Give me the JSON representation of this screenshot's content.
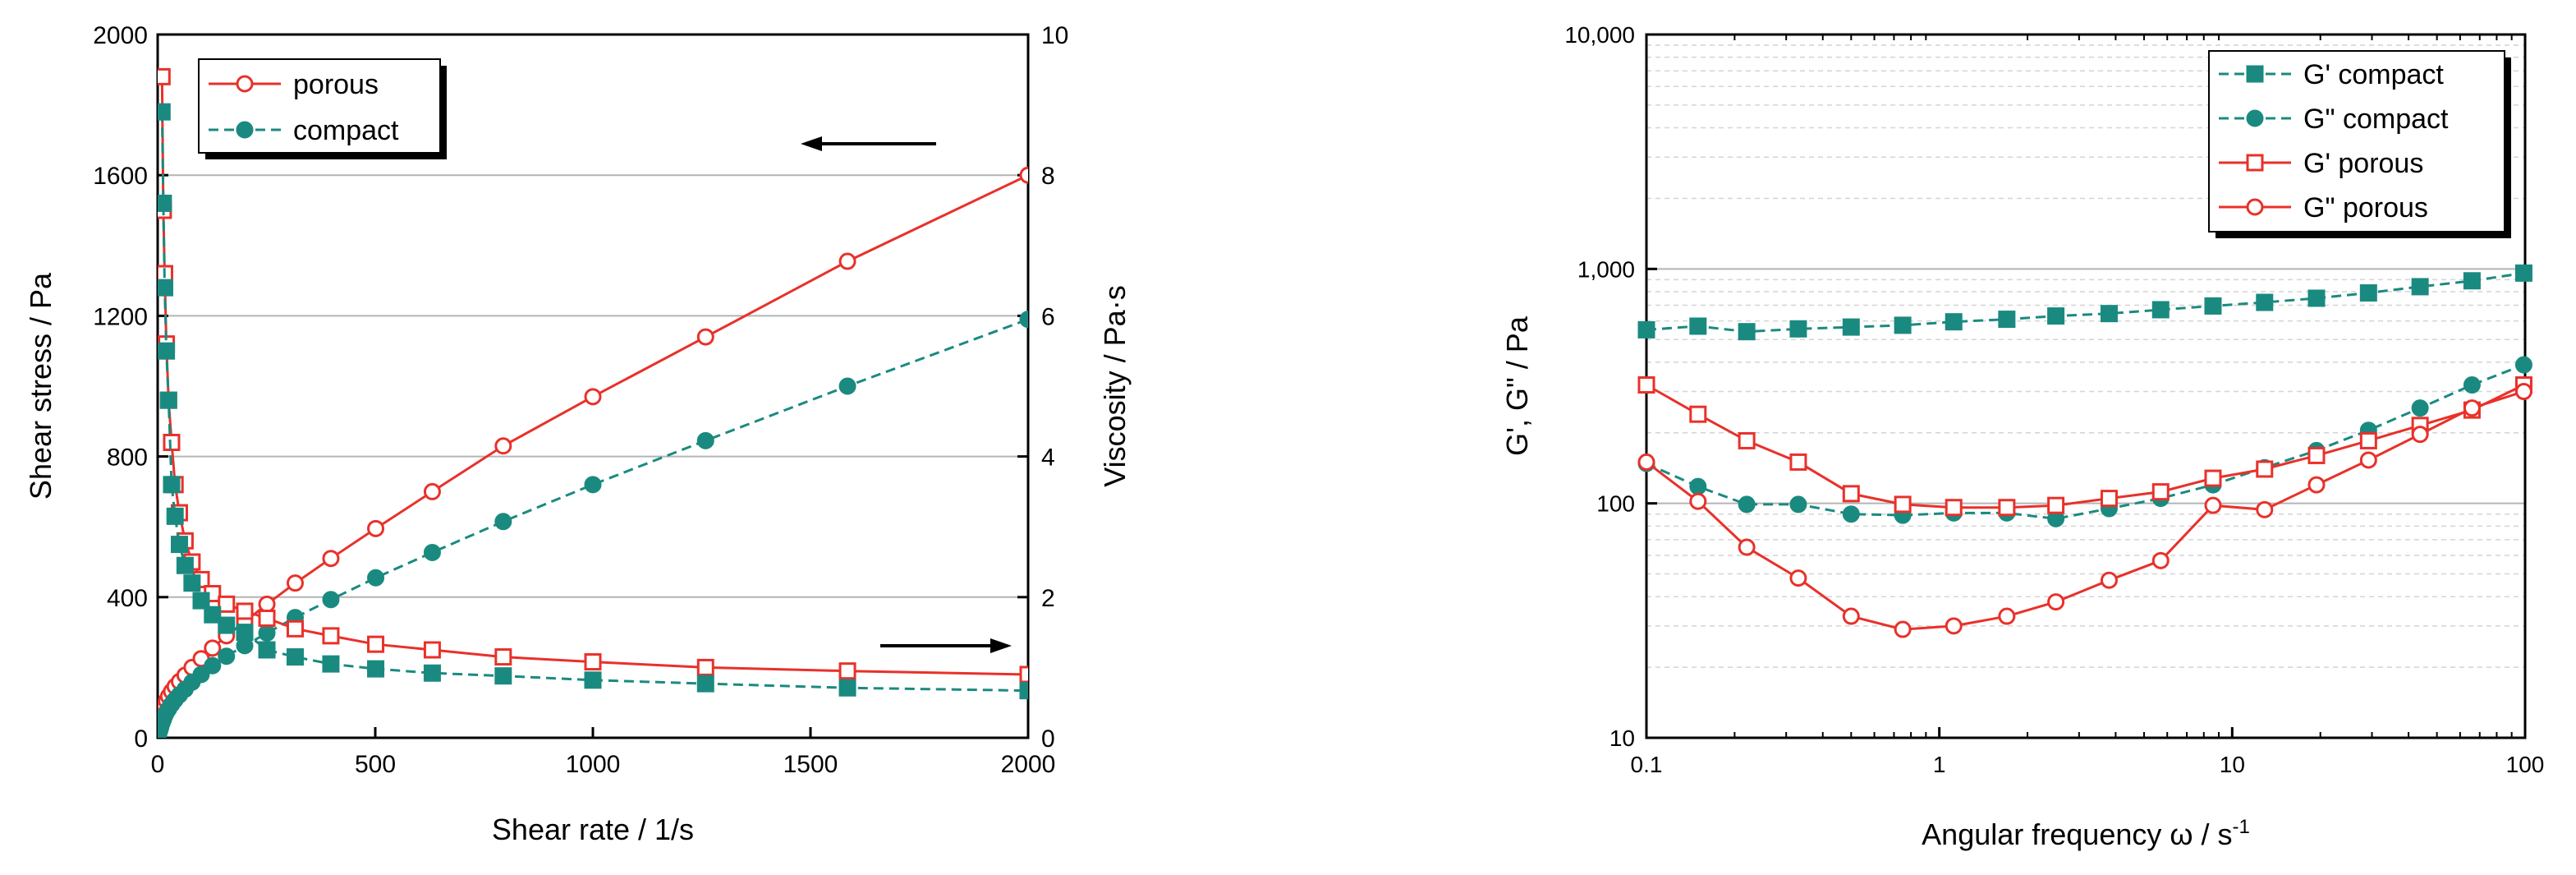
{
  "chart_data": [
    {
      "type": "scatter",
      "id": "flow-curve",
      "xlabel": "Shear rate  /  1/s",
      "ylabel": "Shear stress  /  Pa",
      "y2label": "Viscosity  /  Pa·s",
      "xlim": [
        0,
        2000
      ],
      "ylim": [
        0,
        2000
      ],
      "y2lim": [
        0,
        10
      ],
      "xticks": [
        0,
        500,
        1000,
        1500,
        2000
      ],
      "xtick_labels": [
        "0",
        "500",
        "1000",
        "1500",
        "2000"
      ],
      "yticks": [
        0,
        400,
        800,
        1200,
        1600,
        2000
      ],
      "ytick_labels": [
        "0",
        "400",
        "800",
        "1200",
        "1600",
        "2000"
      ],
      "y2ticks": [
        0,
        2,
        4,
        6,
        8,
        10
      ],
      "y2tick_labels": [
        "0",
        "2",
        "4",
        "6",
        "8",
        "10"
      ],
      "grid": "horizontal",
      "legend_position": "top-left",
      "legend": [
        "porous",
        "compact"
      ],
      "annotations": [
        "arrow pointing left to Shear stress axis",
        "arrow pointing right to Viscosity axis"
      ],
      "series": [
        {
          "name": "porous",
          "quantity": "shear stress",
          "axis": "left",
          "color": "#e8312a",
          "marker": "open-circle",
          "linestyle": "solid",
          "x": [
            1,
            2,
            3,
            5,
            7,
            10,
            13,
            16,
            20,
            25,
            32,
            40,
            50,
            63,
            79,
            100,
            126,
            158,
            200,
            251,
            316,
            398,
            501,
            631,
            794,
            1000,
            1259,
            1585,
            2000
          ],
          "y": [
            8,
            15,
            22,
            32,
            42,
            60,
            75,
            90,
            105,
            118,
            132,
            146,
            160,
            178,
            200,
            225,
            255,
            290,
            330,
            380,
            440,
            510,
            595,
            700,
            830,
            970,
            1140,
            1355,
            1600
          ]
        },
        {
          "name": "compact",
          "quantity": "shear stress",
          "axis": "left",
          "color": "#1a8a80",
          "marker": "filled-circle",
          "linestyle": "dashed",
          "x": [
            1,
            2,
            3,
            5,
            7,
            10,
            13,
            16,
            20,
            25,
            32,
            40,
            50,
            63,
            79,
            100,
            126,
            158,
            200,
            251,
            316,
            398,
            501,
            631,
            794,
            1000,
            1259,
            1585,
            2000
          ],
          "y": [
            5,
            10,
            15,
            22,
            30,
            42,
            52,
            62,
            72,
            82,
            95,
            108,
            122,
            138,
            158,
            180,
            205,
            232,
            262,
            298,
            342,
            393,
            455,
            527,
            615,
            720,
            845,
            1000,
            1190
          ]
        },
        {
          "name": "porous",
          "quantity": "viscosity",
          "axis": "right",
          "color": "#e8312a",
          "marker": "open-square",
          "linestyle": "solid",
          "x": [
            10,
            13,
            16,
            20,
            25,
            32,
            40,
            50,
            63,
            79,
            100,
            126,
            158,
            200,
            251,
            316,
            398,
            501,
            631,
            794,
            1000,
            1259,
            1585,
            2000
          ],
          "y": [
            9.4,
            7.5,
            6.6,
            5.6,
            4.8,
            4.2,
            3.6,
            3.2,
            2.8,
            2.5,
            2.25,
            2.05,
            1.9,
            1.8,
            1.7,
            1.55,
            1.45,
            1.33,
            1.25,
            1.15,
            1.08,
            1.0,
            0.95,
            0.9
          ]
        },
        {
          "name": "compact",
          "quantity": "viscosity",
          "axis": "right",
          "color": "#1a8a80",
          "marker": "filled-square",
          "linestyle": "dashed",
          "x": [
            10,
            13,
            16,
            20,
            25,
            32,
            40,
            50,
            63,
            79,
            100,
            126,
            158,
            200,
            251,
            316,
            398,
            501,
            631,
            794,
            1000,
            1259,
            1585,
            2000
          ],
          "y": [
            8.9,
            7.6,
            6.4,
            5.5,
            4.8,
            3.6,
            3.15,
            2.75,
            2.45,
            2.2,
            1.95,
            1.75,
            1.6,
            1.5,
            1.25,
            1.15,
            1.05,
            0.98,
            0.92,
            0.88,
            0.82,
            0.77,
            0.71,
            0.67
          ]
        }
      ]
    },
    {
      "type": "line",
      "id": "frequency-sweep",
      "xlabel": "Angular frequency ω / s",
      "xlabel_superscript": "-1",
      "ylabel": "G', G\"  /  Pa",
      "xscale": "log",
      "yscale": "log",
      "xlim": [
        0.1,
        100
      ],
      "ylim": [
        10,
        10000
      ],
      "xticks": [
        0.1,
        1,
        10,
        100
      ],
      "xtick_labels": [
        "0.1",
        "1",
        "10",
        "100"
      ],
      "yticks": [
        10,
        100,
        1000,
        10000
      ],
      "ytick_labels": [
        "10",
        "100",
        "1,000",
        "10,000"
      ],
      "grid": "horizontal major and minor",
      "legend_position": "top-right",
      "legend": [
        "G' compact",
        "G\" compact",
        "G' porous",
        "G\" porous"
      ],
      "series": [
        {
          "name": "G' compact",
          "color": "#1a8a80",
          "marker": "filled-square",
          "linestyle": "dashed",
          "x": [
            0.1,
            0.15,
            0.22,
            0.33,
            0.5,
            0.75,
            1.12,
            1.7,
            2.5,
            3.8,
            5.7,
            8.6,
            12.9,
            19.4,
            29.2,
            43.8,
            65.9,
            99
          ],
          "y": [
            550,
            570,
            540,
            555,
            565,
            575,
            595,
            610,
            630,
            645,
            670,
            695,
            720,
            750,
            790,
            840,
            890,
            960
          ]
        },
        {
          "name": "G\" compact",
          "color": "#1a8a80",
          "marker": "filled-circle",
          "linestyle": "dashed",
          "x": [
            0.1,
            0.15,
            0.22,
            0.33,
            0.5,
            0.75,
            1.12,
            1.7,
            2.5,
            3.8,
            5.7,
            8.6,
            12.9,
            19.4,
            29.2,
            43.8,
            65.9,
            99
          ],
          "y": [
            148,
            118,
            99,
            99,
            90,
            89,
            91,
            91,
            86,
            95,
            105,
            120,
            142,
            168,
            205,
            255,
            320,
            390
          ]
        },
        {
          "name": "G' porous",
          "color": "#e8312a",
          "marker": "open-square",
          "linestyle": "solid",
          "x": [
            0.1,
            0.15,
            0.22,
            0.33,
            0.5,
            0.75,
            1.12,
            1.7,
            2.5,
            3.8,
            5.7,
            8.6,
            12.9,
            19.4,
            29.2,
            43.8,
            65.9,
            99
          ],
          "y": [
            320,
            240,
            185,
            150,
            110,
            99,
            96,
            96,
            98,
            105,
            112,
            128,
            140,
            160,
            185,
            215,
            250,
            320
          ]
        },
        {
          "name": "G\" porous",
          "color": "#e8312a",
          "marker": "open-circle",
          "linestyle": "solid",
          "x": [
            0.1,
            0.15,
            0.22,
            0.33,
            0.5,
            0.75,
            1.12,
            1.7,
            2.5,
            3.8,
            5.7,
            8.6,
            12.9,
            19.4,
            29.2,
            43.8,
            65.9,
            99
          ],
          "y": [
            150,
            102,
            65,
            48,
            33,
            29,
            30,
            33,
            38,
            47,
            57,
            98,
            94,
            120,
            153,
            197,
            255,
            300
          ]
        }
      ]
    }
  ]
}
